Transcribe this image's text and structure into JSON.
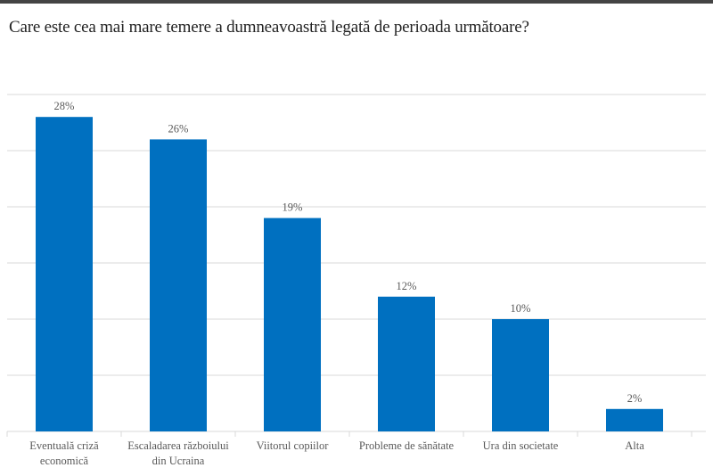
{
  "chart_data": {
    "type": "bar",
    "title": "Care este cea mai mare temere a dumneavoastră legată de perioada următoare?",
    "categories": [
      [
        "Eventuală criză",
        "economică"
      ],
      [
        "Escaladarea războiului",
        "din Ucraina"
      ],
      [
        "Viitorul copiilor"
      ],
      [
        "Probleme de sănătate"
      ],
      [
        "Ura din societate"
      ],
      [
        "Alta"
      ]
    ],
    "values": [
      28,
      26,
      19,
      12,
      10,
      2
    ],
    "data_labels": [
      "28%",
      "26%",
      "19%",
      "12%",
      "10%",
      "2%"
    ],
    "ylim": [
      0,
      30
    ],
    "grid": true,
    "bar_color": "#0070C0",
    "xlabel": "",
    "ylabel": ""
  }
}
